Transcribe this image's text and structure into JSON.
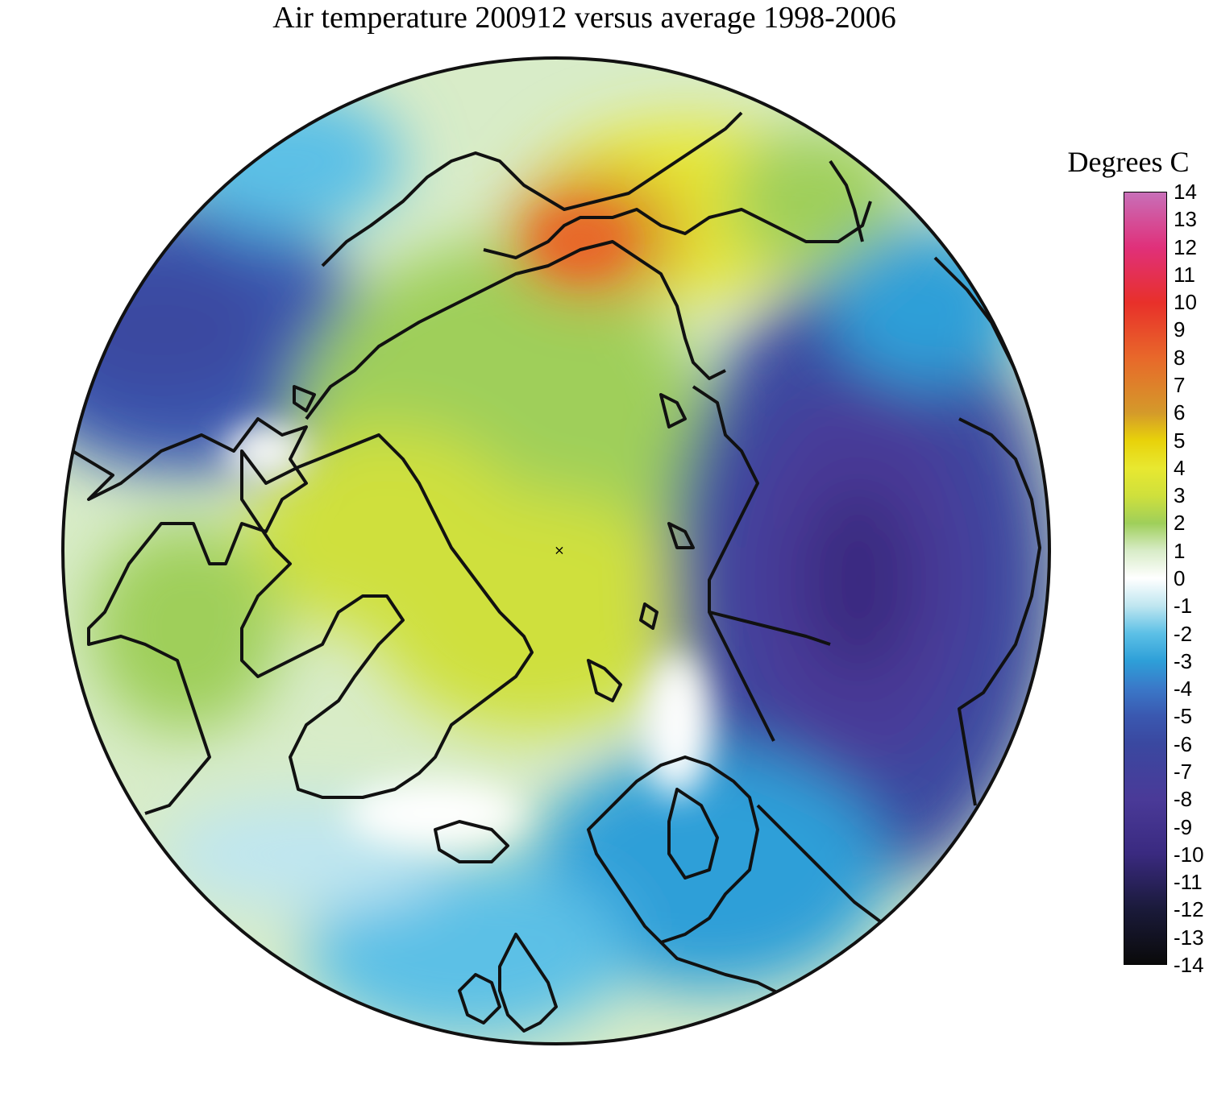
{
  "title": "Air temperature 200912 versus average 1998-2006",
  "legend": {
    "title": "Degrees C",
    "ticks": [
      "14",
      "13",
      "12",
      "11",
      "10",
      "9",
      "8",
      "7",
      "6",
      "5",
      "4",
      "3",
      "2",
      "1",
      "0",
      "-1",
      "-2",
      "-3",
      "-4",
      "-5",
      "-6",
      "-7",
      "-8",
      "-9",
      "-10",
      "-11",
      "-12",
      "-13",
      "-14"
    ],
    "colors": {
      "14": "#c86fb8",
      "12": "#e0307a",
      "10": "#e8302a",
      "8": "#e8682a",
      "6": "#d49a2a",
      "5": "#e8d20a",
      "4": "#e8e830",
      "3": "#cfe03c",
      "2": "#9fcf5a",
      "1": "#d8ecc8",
      "0": "#ffffff",
      "-1": "#bfe6f0",
      "-2": "#5cc0e6",
      "-3": "#2e9fd8",
      "-4": "#3a78c8",
      "-5": "#3a58b0",
      "-6": "#3a48a0",
      "-8": "#4a3a98",
      "-10": "#3a2a80",
      "-12": "#1a1a3a",
      "-14": "#0a0a0a"
    }
  },
  "map": {
    "projection": "north polar stereographic",
    "pole_marker": "×"
  }
}
